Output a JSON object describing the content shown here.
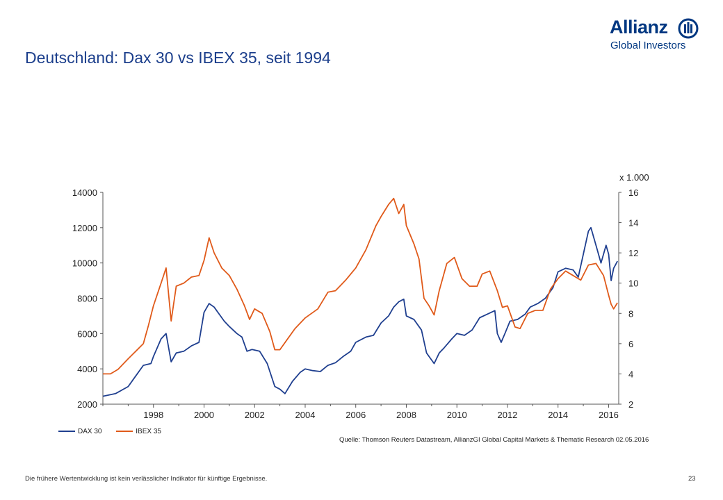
{
  "slide": {
    "title": "Deutschland: Dax 30 vs IBEX 35, seit 1994",
    "footer_note": "Die frühere Wertentwicklung ist kein verlässlicher Indikator für künftige Ergebnisse.",
    "page_number": "23",
    "source": "Quelle: Thomson Reuters Datastream, AllianzGI Global Capital Markets & Thematic Research 02.05.2016"
  },
  "logo": {
    "word": "Allianz",
    "sub": "Global Investors",
    "color": "#003781"
  },
  "chart_data": {
    "type": "line",
    "title": "Deutschland: Dax 30 vs IBEX 35, seit 1994",
    "xlabel": "",
    "ylabel_left": "",
    "ylabel_right": "x 1.000",
    "x_range": [
      1996.0,
      2016.4
    ],
    "x_ticks": [
      1998,
      2000,
      2002,
      2004,
      2006,
      2008,
      2010,
      2012,
      2014,
      2016
    ],
    "y_left": {
      "range": [
        2000,
        14000
      ],
      "ticks": [
        2000,
        4000,
        6000,
        8000,
        10000,
        12000,
        14000
      ]
    },
    "y_right": {
      "range": [
        2,
        16
      ],
      "ticks": [
        2,
        4,
        6,
        8,
        10,
        12,
        14,
        16
      ]
    },
    "grid": false,
    "legend_placement": "bottom-left",
    "series": [
      {
        "name": "DAX 30",
        "axis": "left",
        "color": "#1f3f8f",
        "x": [
          1996.0,
          1996.5,
          1997.0,
          1997.3,
          1997.6,
          1997.9,
          1998.0,
          1998.3,
          1998.5,
          1998.7,
          1998.9,
          1999.2,
          1999.5,
          1999.8,
          2000.0,
          2000.2,
          2000.4,
          2000.6,
          2000.8,
          2001.0,
          2001.3,
          2001.5,
          2001.7,
          2001.9,
          2002.2,
          2002.5,
          2002.8,
          2003.0,
          2003.2,
          2003.5,
          2003.8,
          2004.0,
          2004.3,
          2004.6,
          2004.9,
          2005.2,
          2005.5,
          2005.8,
          2006.0,
          2006.4,
          2006.7,
          2007.0,
          2007.3,
          2007.5,
          2007.7,
          2007.9,
          2008.0,
          2008.3,
          2008.6,
          2008.8,
          2008.95,
          2009.1,
          2009.3,
          2009.5,
          2009.8,
          2010.0,
          2010.3,
          2010.6,
          2010.9,
          2011.2,
          2011.5,
          2011.6,
          2011.75,
          2011.9,
          2012.1,
          2012.4,
          2012.7,
          2012.9,
          2013.2,
          2013.5,
          2013.8,
          2014.0,
          2014.3,
          2014.6,
          2014.8,
          2015.0,
          2015.2,
          2015.3,
          2015.5,
          2015.7,
          2015.9,
          2016.0,
          2016.1,
          2016.2,
          2016.35
        ],
        "y": [
          2450,
          2600,
          3000,
          3600,
          4200,
          4300,
          4700,
          5700,
          6000,
          4400,
          4900,
          5000,
          5300,
          5500,
          7200,
          7700,
          7500,
          7100,
          6700,
          6400,
          6000,
          5800,
          5000,
          5100,
          5000,
          4300,
          3000,
          2850,
          2600,
          3300,
          3800,
          4000,
          3900,
          3850,
          4200,
          4350,
          4700,
          5000,
          5500,
          5800,
          5900,
          6600,
          7000,
          7500,
          7800,
          7950,
          7000,
          6800,
          6200,
          4900,
          4600,
          4300,
          4900,
          5200,
          5700,
          6000,
          5900,
          6200,
          6900,
          7100,
          7300,
          6000,
          5500,
          6000,
          6700,
          6800,
          7100,
          7500,
          7700,
          8000,
          8600,
          9500,
          9700,
          9600,
          9200,
          10500,
          11800,
          12000,
          11000,
          10000,
          11000,
          10500,
          9000,
          9700,
          10100
        ]
      },
      {
        "name": "IBEX 35",
        "axis": "right",
        "color": "#e05a1a",
        "x": [
          1996.0,
          1996.3,
          1996.6,
          1997.0,
          1997.3,
          1997.6,
          1997.8,
          1998.0,
          1998.3,
          1998.5,
          1998.7,
          1998.9,
          1999.2,
          1999.5,
          1999.8,
          2000.0,
          2000.2,
          2000.4,
          2000.7,
          2001.0,
          2001.3,
          2001.6,
          2001.8,
          2002.0,
          2002.3,
          2002.6,
          2002.8,
          2003.0,
          2003.3,
          2003.6,
          2004.0,
          2004.5,
          2004.9,
          2005.2,
          2005.6,
          2006.0,
          2006.4,
          2006.8,
          2007.0,
          2007.3,
          2007.5,
          2007.7,
          2007.9,
          2008.0,
          2008.3,
          2008.5,
          2008.7,
          2008.9,
          2009.1,
          2009.3,
          2009.6,
          2009.9,
          2010.2,
          2010.5,
          2010.8,
          2011.0,
          2011.3,
          2011.6,
          2011.8,
          2012.0,
          2012.3,
          2012.5,
          2012.8,
          2013.1,
          2013.4,
          2013.7,
          2014.0,
          2014.3,
          2014.6,
          2014.9,
          2015.2,
          2015.5,
          2015.8,
          2016.0,
          2016.1,
          2016.2,
          2016.35
        ],
        "y": [
          4.0,
          4.0,
          4.3,
          5.0,
          5.5,
          6.0,
          7.2,
          8.5,
          10.0,
          11.0,
          7.5,
          9.8,
          10.0,
          10.4,
          10.5,
          11.5,
          13.0,
          12.0,
          11.0,
          10.5,
          9.6,
          8.5,
          7.6,
          8.3,
          8.0,
          6.8,
          5.6,
          5.6,
          6.3,
          7.0,
          7.7,
          8.3,
          9.4,
          9.5,
          10.2,
          11.0,
          12.2,
          13.8,
          14.4,
          15.2,
          15.6,
          14.6,
          15.2,
          13.8,
          12.6,
          11.6,
          9.0,
          8.5,
          7.9,
          9.5,
          11.3,
          11.7,
          10.3,
          9.8,
          9.8,
          10.6,
          10.8,
          9.5,
          8.4,
          8.5,
          7.1,
          7.0,
          8.0,
          8.2,
          8.2,
          9.6,
          10.3,
          10.8,
          10.5,
          10.2,
          11.2,
          11.3,
          10.5,
          9.2,
          8.6,
          8.3,
          8.7
        ]
      }
    ]
  }
}
